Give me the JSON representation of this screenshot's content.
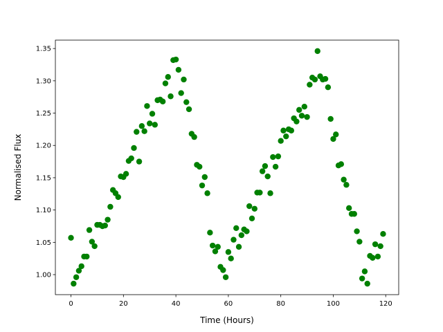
{
  "chart_data": {
    "type": "scatter",
    "x_label": "Time (Hours)",
    "y_label": "Normalised Flux",
    "x": [
      0,
      1,
      2,
      3,
      4,
      5,
      6,
      7,
      8,
      9,
      10,
      11,
      12,
      13,
      14,
      15,
      16,
      17,
      18,
      19,
      20,
      21,
      22,
      23,
      24,
      25,
      26,
      27,
      28,
      29,
      30,
      31,
      32,
      33,
      34,
      35,
      36,
      37,
      38,
      39,
      40,
      41,
      42,
      43,
      44,
      45,
      46,
      47,
      48,
      49,
      50,
      51,
      52,
      53,
      54,
      55,
      56,
      57,
      58,
      59,
      60,
      61,
      62,
      63,
      64,
      65,
      66,
      67,
      68,
      69,
      70,
      71,
      72,
      73,
      74,
      75,
      76,
      77,
      78,
      79,
      80,
      81,
      82,
      83,
      84,
      85,
      86,
      87,
      88,
      89,
      90,
      91,
      92,
      93,
      94,
      95,
      96,
      97,
      98,
      99,
      100,
      101,
      102,
      103,
      104,
      105,
      106,
      107,
      108,
      109,
      110,
      111,
      112,
      113,
      114,
      115,
      116,
      117,
      118,
      119
    ],
    "values": [
      1.057,
      0.986,
      0.996,
      1.006,
      1.013,
      1.028,
      1.028,
      1.069,
      1.051,
      1.044,
      1.077,
      1.077,
      1.075,
      1.076,
      1.085,
      1.105,
      1.131,
      1.126,
      1.12,
      1.152,
      1.151,
      1.156,
      1.176,
      1.18,
      1.196,
      1.221,
      1.175,
      1.23,
      1.222,
      1.261,
      1.234,
      1.249,
      1.232,
      1.27,
      1.271,
      1.268,
      1.296,
      1.306,
      1.276,
      1.332,
      1.333,
      1.317,
      1.281,
      1.302,
      1.267,
      1.256,
      1.218,
      1.213,
      1.17,
      1.167,
      1.138,
      1.151,
      1.126,
      1.065,
      1.045,
      1.036,
      1.043,
      1.012,
      1.007,
      0.996,
      1.035,
      1.025,
      1.054,
      1.072,
      1.043,
      1.061,
      1.07,
      1.067,
      1.106,
      1.087,
      1.102,
      1.127,
      1.127,
      1.16,
      1.168,
      1.152,
      1.126,
      1.182,
      1.167,
      1.183,
      1.207,
      1.223,
      1.214,
      1.225,
      1.223,
      1.242,
      1.237,
      1.255,
      1.246,
      1.26,
      1.244,
      1.294,
      1.305,
      1.302,
      1.346,
      1.307,
      1.302,
      1.303,
      1.29,
      1.241,
      1.21,
      1.217,
      1.169,
      1.171,
      1.147,
      1.139,
      1.103,
      1.094,
      1.094,
      1.067,
      1.051,
      0.994,
      1.005,
      0.986,
      1.029,
      1.026,
      1.047,
      1.028,
      1.044,
      1.063
    ],
    "color": "green",
    "xlim": [
      -5.95,
      124.95
    ],
    "xticks": [
      0,
      20,
      40,
      60,
      80,
      100,
      120
    ],
    "ylim": [
      0.969,
      1.363
    ],
    "yticks": [
      {
        "value": 1,
        "label": "1.00"
      },
      1.05,
      {
        "value": 1.1,
        "label": "1.10"
      },
      1.15,
      {
        "value": 1.2,
        "label": "1.20"
      },
      1.25,
      {
        "value": 1.3,
        "label": "1.30"
      },
      1.35
    ]
  }
}
